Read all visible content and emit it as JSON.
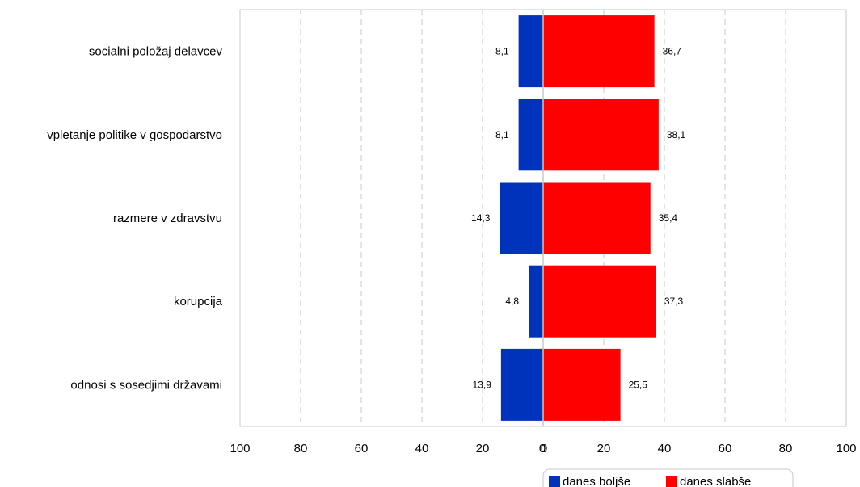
{
  "chart_data": {
    "type": "bar",
    "orientation": "horizontal-diverging",
    "categories": [
      "socialni položaj delavcev",
      "vpletanje politike v gospodarstvo",
      "razmere v zdravstvu",
      "korupcija",
      "odnosi s sosedjimi državami"
    ],
    "series": [
      {
        "name": "danes boljše",
        "color": "#0033bb",
        "direction": "left",
        "values": [
          8.1,
          8.1,
          14.3,
          4.8,
          13.9
        ],
        "value_labels": [
          "8,1",
          "8,1",
          "14,3",
          "4,8",
          "13,9"
        ]
      },
      {
        "name": "danes slabše",
        "color": "#ff0000",
        "direction": "right",
        "values": [
          36.7,
          38.1,
          35.4,
          37.3,
          25.5
        ],
        "value_labels": [
          "36,7",
          "38,1",
          "35,4",
          "37,3",
          "25,5"
        ]
      }
    ],
    "xlim": [
      -100,
      100
    ],
    "x_tick_labels": [
      "100",
      "80",
      "60",
      "40",
      "20",
      "0",
      "0",
      "20",
      "40",
      "60",
      "80",
      "100"
    ],
    "grid": "vertical-dashed",
    "legend_position": "bottom-right",
    "title": "",
    "xlabel": "",
    "ylabel": ""
  }
}
